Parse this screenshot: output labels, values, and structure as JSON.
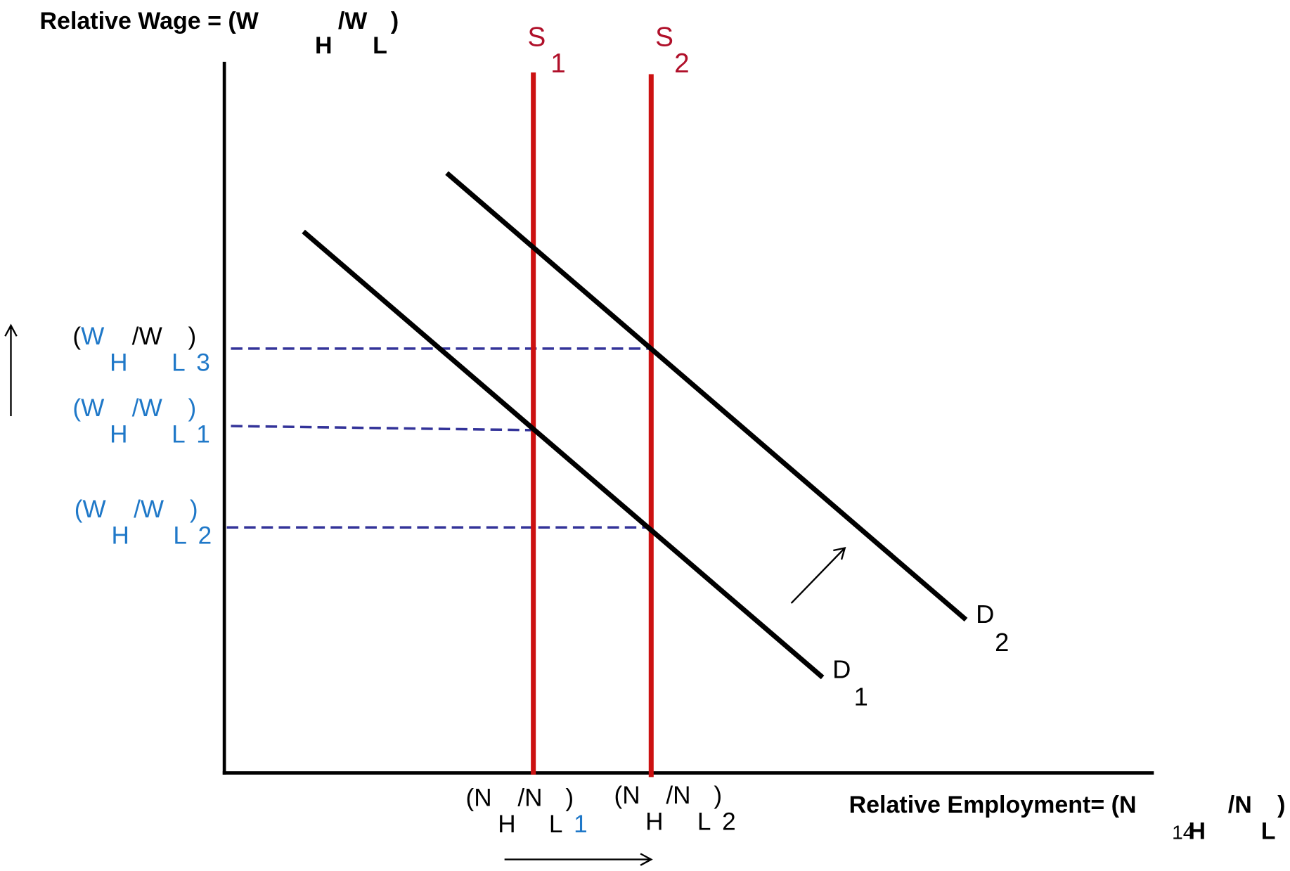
{
  "y_axis_label": [
    "Relative Wage = (W",
    "H",
    "/W",
    "L",
    ")"
  ],
  "x_axis_label": [
    "Relative Employment= (N",
    "H",
    "/N",
    "L",
    ")"
  ],
  "page_number": "14",
  "supply": [
    {
      "parts": [
        "S",
        "1"
      ]
    },
    {
      "parts": [
        "S",
        "2"
      ]
    }
  ],
  "demand": [
    {
      "parts": [
        "D",
        "1"
      ]
    },
    {
      "parts": [
        "D",
        "2"
      ]
    }
  ],
  "wage_levels": [
    {
      "parts": [
        "(",
        "W",
        "H",
        "/W",
        "L",
        ")",
        "3"
      ]
    },
    {
      "parts": [
        "(",
        "W",
        "H",
        "/W",
        "L",
        ")",
        "1"
      ]
    },
    {
      "parts": [
        "(",
        "W",
        "H",
        "/W",
        "L",
        ")",
        "2"
      ]
    }
  ],
  "employment_levels": [
    {
      "parts": [
        "(",
        "N",
        "H",
        "/N",
        "L",
        ")",
        "1"
      ]
    },
    {
      "parts": [
        "(",
        "N",
        "H",
        "/N",
        "L",
        ")",
        "2"
      ]
    }
  ]
}
